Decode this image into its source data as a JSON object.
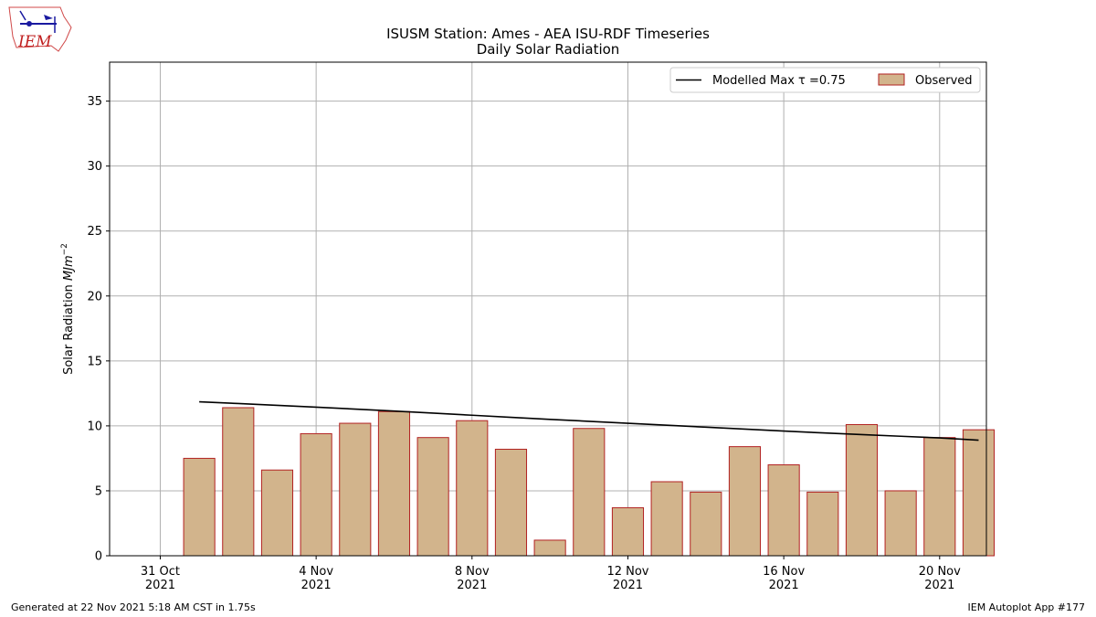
{
  "logo": {
    "text": "IEM"
  },
  "chart_data": {
    "type": "bar",
    "title": "ISUSM Station: Ames - AEA ISU-RDF Timeseries",
    "subtitle": "Daily Solar Radiation",
    "xlabel": "",
    "ylabel": "Solar Radiation MJm^-2",
    "ylim": [
      0,
      38
    ],
    "xlim_days_from_oct31": [
      -1.3,
      21.2
    ],
    "grid": true,
    "legend_position": "top-right",
    "x": [
      "1 Nov 2021",
      "2 Nov 2021",
      "3 Nov 2021",
      "4 Nov 2021",
      "5 Nov 2021",
      "6 Nov 2021",
      "7 Nov 2021",
      "8 Nov 2021",
      "9 Nov 2021",
      "10 Nov 2021",
      "11 Nov 2021",
      "12 Nov 2021",
      "13 Nov 2021",
      "14 Nov 2021",
      "15 Nov 2021",
      "16 Nov 2021",
      "17 Nov 2021",
      "18 Nov 2021",
      "19 Nov 2021",
      "20 Nov 2021",
      "21 Nov 2021"
    ],
    "x_ticks": [
      {
        "day": 0,
        "line1": "31 Oct",
        "line2": "2021"
      },
      {
        "day": 4,
        "line1": "4 Nov",
        "line2": "2021"
      },
      {
        "day": 8,
        "line1": "8 Nov",
        "line2": "2021"
      },
      {
        "day": 12,
        "line1": "12 Nov",
        "line2": "2021"
      },
      {
        "day": 16,
        "line1": "16 Nov",
        "line2": "2021"
      },
      {
        "day": 20,
        "line1": "20 Nov",
        "line2": "2021"
      }
    ],
    "y_ticks": [
      0,
      5,
      10,
      15,
      20,
      25,
      30,
      35
    ],
    "series": [
      {
        "name": "Observed",
        "kind": "bar",
        "fill": "#d2b48c",
        "edge": "#b22222",
        "values": [
          7.5,
          11.4,
          6.6,
          9.4,
          10.2,
          11.1,
          9.1,
          10.4,
          8.2,
          1.2,
          9.8,
          3.7,
          5.7,
          4.9,
          8.4,
          7.0,
          4.9,
          10.1,
          5.0,
          9.1,
          9.7
        ]
      },
      {
        "name": "Modelled Max τ =0.75",
        "kind": "line",
        "color": "#000000",
        "values": [
          11.85,
          11.72,
          11.58,
          11.44,
          11.29,
          11.14,
          10.98,
          10.82,
          10.66,
          10.5,
          10.35,
          10.2,
          10.05,
          9.9,
          9.75,
          9.6,
          9.46,
          9.33,
          9.2,
          9.07,
          8.9
        ]
      }
    ]
  },
  "footer": {
    "left": "Generated at 22 Nov 2021 5:18 AM CST in 1.75s",
    "right": "IEM Autoplot App #177"
  }
}
